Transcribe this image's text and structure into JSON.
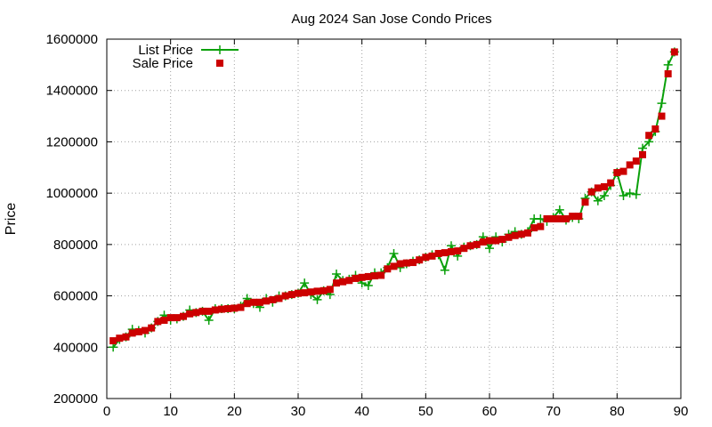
{
  "chart_data": {
    "type": "line",
    "title": "Aug 2024 San Jose Condo Prices",
    "xlabel": "",
    "ylabel": "Price",
    "xlim": [
      0,
      90
    ],
    "ylim": [
      200000,
      1600000
    ],
    "x_ticks": [
      0,
      10,
      20,
      30,
      40,
      50,
      60,
      70,
      80,
      90
    ],
    "y_ticks": [
      200000,
      400000,
      600000,
      800000,
      1000000,
      1200000,
      1400000,
      1600000
    ],
    "x_tick_labels": [
      "0",
      "10",
      "20",
      "30",
      "40",
      "50",
      "60",
      "70",
      "80",
      "90"
    ],
    "y_tick_labels": [
      "200000",
      "400000",
      "600000",
      "800000",
      "1000000",
      "1200000",
      "1400000",
      "1600000"
    ],
    "grid": true,
    "legend_position": "top-left",
    "series": [
      {
        "name": "List Price",
        "style": "line-with-plus-markers",
        "color": "#0aa00a",
        "values": [
          400000,
          430000,
          440000,
          470000,
          465000,
          455000,
          475000,
          500000,
          525000,
          505000,
          510000,
          520000,
          545000,
          535000,
          540000,
          505000,
          550000,
          550000,
          550000,
          550000,
          560000,
          590000,
          570000,
          555000,
          590000,
          575000,
          600000,
          600000,
          605000,
          610000,
          650000,
          605000,
          585000,
          620000,
          605000,
          685000,
          660000,
          665000,
          680000,
          650000,
          640000,
          690000,
          690000,
          710000,
          765000,
          710000,
          725000,
          735000,
          740000,
          750000,
          760000,
          760000,
          700000,
          795000,
          755000,
          790000,
          795000,
          800000,
          830000,
          785000,
          830000,
          810000,
          840000,
          850000,
          840000,
          850000,
          900000,
          900000,
          890000,
          905000,
          935000,
          895000,
          905000,
          900000,
          980000,
          1005000,
          970000,
          990000,
          1030000,
          1080000,
          990000,
          1000000,
          995000,
          1175000,
          1200000,
          1240000,
          1350000,
          1500000,
          1550000
        ]
      },
      {
        "name": "Sale Price",
        "style": "markers-square",
        "color": "#cc0000",
        "values": [
          425000,
          435000,
          440000,
          455000,
          460000,
          465000,
          475000,
          500000,
          505000,
          515000,
          515000,
          520000,
          530000,
          535000,
          540000,
          540000,
          545000,
          548000,
          550000,
          552000,
          555000,
          570000,
          575000,
          575000,
          580000,
          585000,
          590000,
          600000,
          605000,
          610000,
          612000,
          615000,
          618000,
          620000,
          625000,
          650000,
          655000,
          660000,
          668000,
          672000,
          675000,
          678000,
          680000,
          705000,
          715000,
          725000,
          728000,
          730000,
          740000,
          750000,
          755000,
          765000,
          768000,
          772000,
          775000,
          785000,
          795000,
          800000,
          810000,
          815000,
          815000,
          820000,
          828000,
          835000,
          840000,
          845000,
          865000,
          870000,
          900000,
          900000,
          900000,
          900000,
          910000,
          910000,
          965000,
          1005000,
          1020000,
          1025000,
          1040000,
          1080000,
          1085000,
          1110000,
          1125000,
          1150000,
          1225000,
          1250000,
          1300000,
          1465000,
          1550000
        ]
      }
    ]
  }
}
